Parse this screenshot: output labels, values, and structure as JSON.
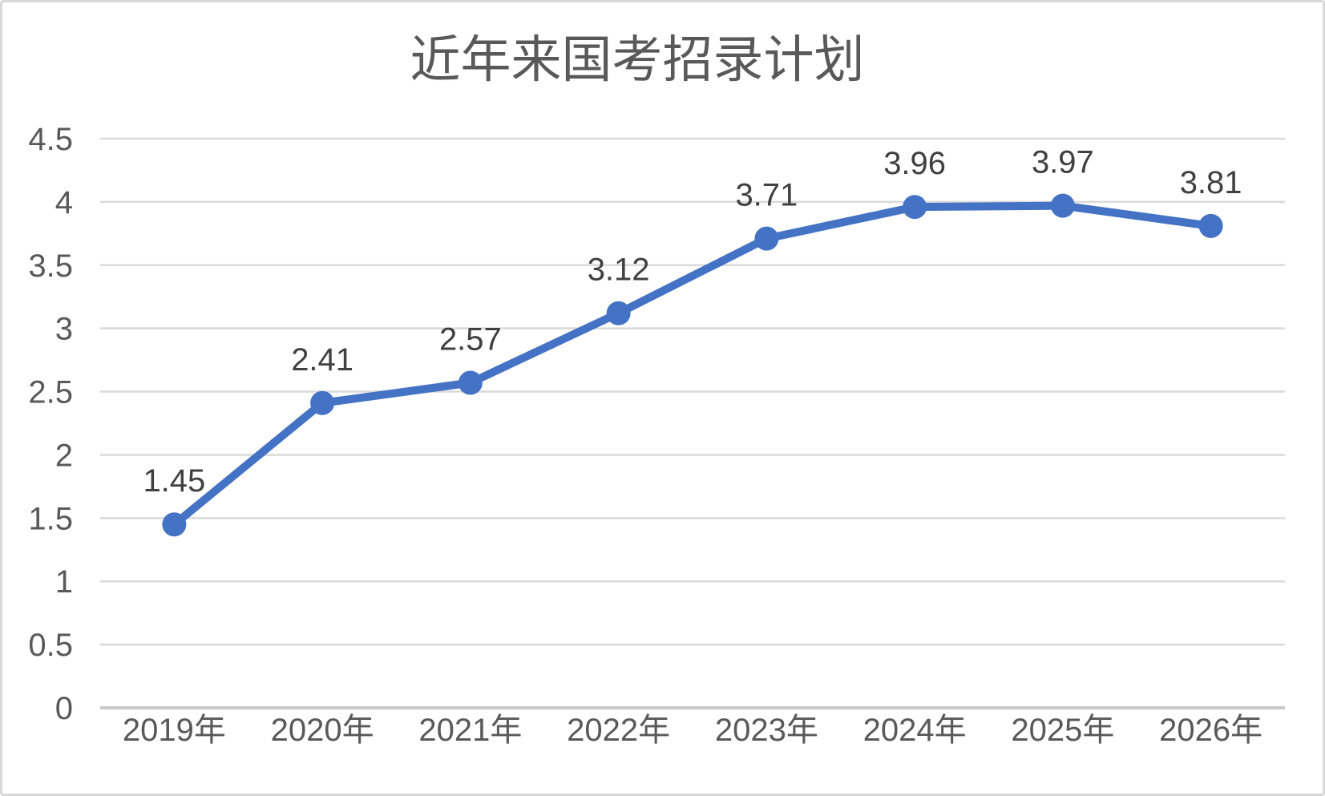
{
  "chart": {
    "title": "近年来国考招录计划"
  },
  "chart_data": {
    "type": "line",
    "title": "近年来国考招录计划",
    "categories": [
      "2019年",
      "2020年",
      "2021年",
      "2022年",
      "2023年",
      "2024年",
      "2025年",
      "2026年"
    ],
    "values": [
      1.45,
      2.41,
      2.57,
      3.12,
      3.71,
      3.96,
      3.97,
      3.81
    ],
    "data_labels": [
      "1.45",
      "2.41",
      "2.57",
      "3.12",
      "3.71",
      "3.96",
      "3.97",
      "3.81"
    ],
    "y_ticks": [
      "0",
      "0.5",
      "1",
      "1.5",
      "2",
      "2.5",
      "3",
      "3.5",
      "4",
      "4.5"
    ],
    "y_tick_values": [
      0,
      0.5,
      1,
      1.5,
      2,
      2.5,
      3,
      3.5,
      4,
      4.5
    ],
    "xlabel": "",
    "ylabel": "",
    "ylim": [
      0,
      4.5
    ],
    "grid": true,
    "legend": "none",
    "colors": {
      "line": "#4472c4",
      "marker": "#4472c4",
      "data_label": "#404040",
      "axis_text": "#595959",
      "gridline": "#d9d9d9",
      "axis_line": "#c9c9c9",
      "title_text": "#595959",
      "frame_border": "#d8d8d8",
      "background": "#ffffff"
    }
  }
}
